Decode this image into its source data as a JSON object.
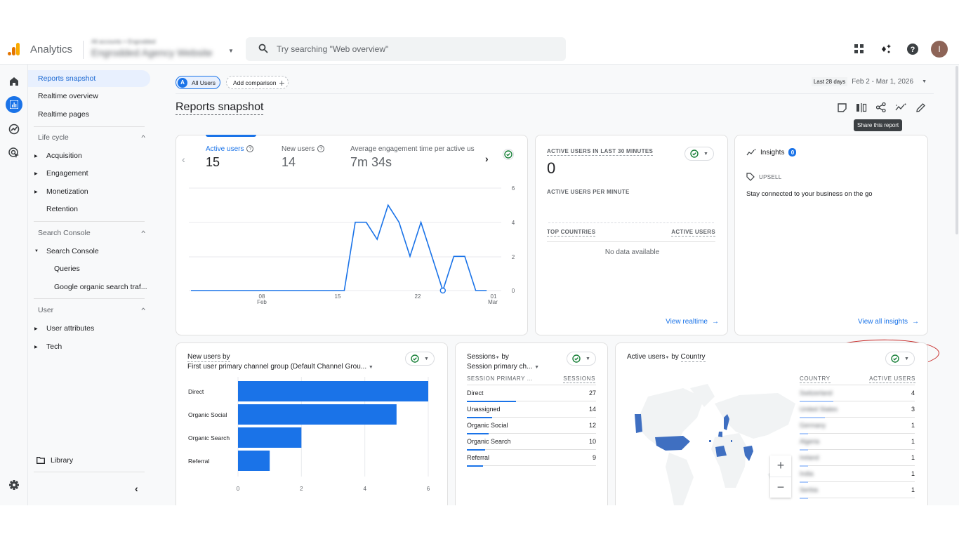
{
  "topbar": {
    "app_name": "Analytics",
    "account_path": "All accounts > Engrodded",
    "property_name": "Engrodded Agency Website",
    "search_placeholder": "Try searching \"Web overview\"",
    "icons": [
      "apps-grid-icon",
      "sparkle-icon",
      "help-icon"
    ],
    "avatar_initial": "I"
  },
  "rail": {
    "icons": [
      "home-icon",
      "reports-icon",
      "explore-icon",
      "advertising-icon",
      "settings-icon"
    ]
  },
  "nav": {
    "top_items": [
      {
        "label": "Reports snapshot",
        "active": true
      },
      {
        "label": "Realtime overview"
      },
      {
        "label": "Realtime pages"
      }
    ],
    "sections": [
      {
        "title": "Life cycle",
        "items": [
          "Acquisition",
          "Engagement",
          "Monetization",
          "Retention"
        ]
      },
      {
        "title": "Search Console",
        "items": [
          "Search Console",
          "Queries",
          "Google organic search traf..."
        ]
      },
      {
        "title": "User",
        "items": [
          "User attributes",
          "Tech"
        ]
      }
    ],
    "library_label": "Library",
    "collapse_icon": "chevron-left-icon"
  },
  "header": {
    "comparison_chip_letter": "A",
    "comparison_chip": "All Users",
    "add_comparison": "Add comparison",
    "date_label": "Last 28 days",
    "date_range": "Feb 2 - Mar 1, 2026",
    "page_title": "Reports snapshot",
    "tooltip": "Share this report"
  },
  "overview_card": {
    "metrics": [
      {
        "label": "Active users",
        "value": "15"
      },
      {
        "label": "New users",
        "value": "14"
      },
      {
        "label": "Average engagement time per active us",
        "value": "7m 34s"
      }
    ],
    "x_ticks": [
      {
        "top": "08",
        "bottom": "Feb"
      },
      {
        "top": "15",
        "bottom": ""
      },
      {
        "top": "22",
        "bottom": ""
      },
      {
        "top": "01",
        "bottom": "Mar"
      }
    ],
    "y_ticks": [
      "6",
      "4",
      "2",
      "0"
    ]
  },
  "realtime_card": {
    "title": "ACTIVE USERS IN LAST 30 MINUTES",
    "value": "0",
    "per_minute_label": "ACTIVE USERS PER MINUTE",
    "col_country": "TOP COUNTRIES",
    "col_users": "ACTIVE USERS",
    "empty": "No data available",
    "link": "View realtime"
  },
  "insights_card": {
    "title": "Insights",
    "badge": "0",
    "tag": "UPSELL",
    "text": "Stay connected to your business on the go",
    "link": "View all insights"
  },
  "new_users_card": {
    "title_line1": "New users by",
    "title_line2": "First user primary channel group (Default Channel Grou...",
    "x_ticks": [
      "0",
      "2",
      "4",
      "6"
    ]
  },
  "sessions_card": {
    "title_line1": "Sessions",
    "title_by": "by",
    "title_line2": "Session primary ch...",
    "col_dim": "SESSION PRIMARY ...",
    "col_metric": "SESSIONS",
    "rows": [
      {
        "label": "Direct",
        "value": "27"
      },
      {
        "label": "Unassigned",
        "value": "14"
      },
      {
        "label": "Organic Social",
        "value": "12"
      },
      {
        "label": "Organic Search",
        "value": "10"
      },
      {
        "label": "Referral",
        "value": "9"
      }
    ]
  },
  "country_card": {
    "title_metric": "Active users",
    "title_by": "by",
    "title_dim": "Country",
    "col_country": "COUNTRY",
    "col_users": "ACTIVE USERS",
    "rows": [
      {
        "label": "Switzerland",
        "value": "4"
      },
      {
        "label": "United States",
        "value": "3"
      },
      {
        "label": "Germany",
        "value": "1"
      },
      {
        "label": "Algeria",
        "value": "1"
      },
      {
        "label": "Ireland",
        "value": "1"
      },
      {
        "label": "India",
        "value": "1"
      },
      {
        "label": "Serbia",
        "value": "1"
      }
    ],
    "zoom_in": "+",
    "zoom_out": "−"
  },
  "colors": {
    "accent": "#1a73e8",
    "annotation": "#c5221f",
    "check": "#188038"
  },
  "chart_data": [
    {
      "type": "line",
      "title": "Active users",
      "x": [
        "Feb 2",
        "Feb 3",
        "Feb 4",
        "Feb 5",
        "Feb 6",
        "Feb 7",
        "Feb 8",
        "Feb 9",
        "Feb 10",
        "Feb 11",
        "Feb 12",
        "Feb 13",
        "Feb 14",
        "Feb 15",
        "Feb 16",
        "Feb 17",
        "Feb 18",
        "Feb 19",
        "Feb 20",
        "Feb 21",
        "Feb 22",
        "Feb 23",
        "Feb 24",
        "Feb 25",
        "Feb 26",
        "Feb 27",
        "Feb 28",
        "Mar 1"
      ],
      "values": [
        0,
        0,
        0,
        0,
        0,
        0,
        0,
        0,
        0,
        0,
        0,
        0,
        0,
        0,
        0,
        4,
        4,
        3,
        5,
        4,
        2,
        4,
        2,
        0,
        2,
        2,
        0,
        0
      ],
      "xlabel": "",
      "ylabel": "",
      "ylim": [
        0,
        6
      ],
      "y_ticks": [
        0,
        2,
        4,
        6
      ],
      "grid": true
    },
    {
      "type": "bar",
      "orientation": "horizontal",
      "title": "New users by First user primary channel group (Default Channel Group)",
      "categories": [
        "Direct",
        "Organic Social",
        "Organic Search",
        "Referral"
      ],
      "values": [
        6,
        5,
        2,
        1
      ],
      "xlim": [
        0,
        6
      ],
      "x_ticks": [
        0,
        2,
        4,
        6
      ],
      "grid": true
    },
    {
      "type": "table",
      "title": "Sessions by Session primary channel group",
      "categories": [
        "Direct",
        "Unassigned",
        "Organic Social",
        "Organic Search",
        "Referral"
      ],
      "values": [
        27,
        14,
        12,
        10,
        9
      ]
    },
    {
      "type": "table",
      "title": "Active users by Country",
      "categories": [
        "Switzerland",
        "United States",
        "Germany",
        "Algeria",
        "Ireland",
        "India",
        "Serbia"
      ],
      "values": [
        4,
        3,
        1,
        1,
        1,
        1,
        1
      ]
    }
  ]
}
